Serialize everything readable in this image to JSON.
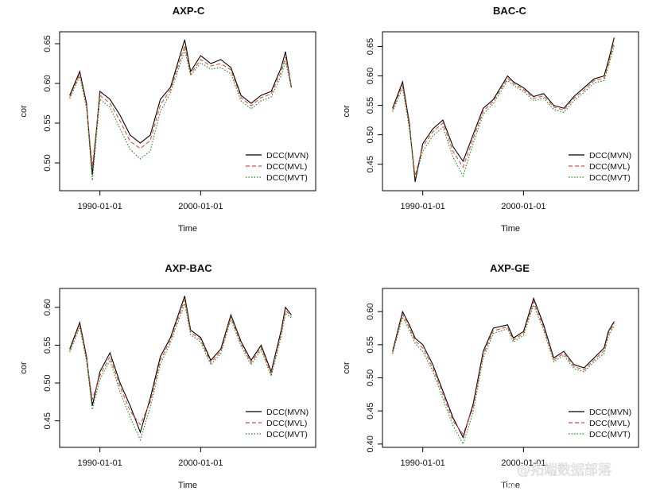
{
  "chart_data": [
    {
      "type": "line",
      "title": "AXP-C",
      "xlabel": "Time",
      "ylabel": "cor",
      "x_range": [
        "1986-01-01",
        "2011-06-01"
      ],
      "ylim": [
        0.465,
        0.665
      ],
      "x_ticks": [
        "1990-01-01",
        "2000-01-01"
      ],
      "y_ticks": [
        0.5,
        0.55,
        0.6,
        0.65
      ],
      "legend_position": "bottom-right",
      "x": [
        "1987-01-01",
        "1988-01-01",
        "1988-09-01",
        "1989-04-01",
        "1990-01-01",
        "1991-01-01",
        "1992-01-01",
        "1993-01-01",
        "1994-01-01",
        "1995-01-01",
        "1996-01-01",
        "1997-01-01",
        "1998-06-01",
        "1999-01-01",
        "2000-01-01",
        "2001-01-01",
        "2002-01-01",
        "2003-01-01",
        "2004-01-01",
        "2005-01-01",
        "2006-01-01",
        "2007-01-01",
        "2008-01-01",
        "2008-06-01",
        "2009-01-01"
      ],
      "series": [
        {
          "name": "DCC(MVN)",
          "color": "#000000",
          "dash": "solid",
          "values": [
            0.585,
            0.615,
            0.575,
            0.485,
            0.59,
            0.58,
            0.56,
            0.535,
            0.525,
            0.535,
            0.58,
            0.595,
            0.655,
            0.615,
            0.635,
            0.625,
            0.63,
            0.62,
            0.585,
            0.575,
            0.585,
            0.59,
            0.62,
            0.64,
            0.595
          ]
        },
        {
          "name": "DCC(MVL)",
          "color": "#e8483c",
          "dash": "dashed",
          "values": [
            0.583,
            0.612,
            0.572,
            0.495,
            0.585,
            0.575,
            0.553,
            0.527,
            0.518,
            0.528,
            0.573,
            0.592,
            0.648,
            0.612,
            0.63,
            0.622,
            0.625,
            0.617,
            0.582,
            0.572,
            0.582,
            0.587,
            0.615,
            0.633,
            0.597
          ]
        },
        {
          "name": "DCC(MVT)",
          "color": "#1a8a1a",
          "dash": "dotted",
          "values": [
            0.581,
            0.609,
            0.569,
            0.478,
            0.58,
            0.57,
            0.543,
            0.517,
            0.505,
            0.515,
            0.565,
            0.588,
            0.642,
            0.61,
            0.626,
            0.618,
            0.62,
            0.612,
            0.578,
            0.568,
            0.578,
            0.583,
            0.61,
            0.628,
            0.594
          ]
        }
      ]
    },
    {
      "type": "line",
      "title": "BAC-C",
      "xlabel": "Time",
      "ylabel": "cor",
      "x_range": [
        "1986-01-01",
        "2011-06-01"
      ],
      "ylim": [
        0.405,
        0.675
      ],
      "x_ticks": [
        "1990-01-01",
        "2000-01-01"
      ],
      "y_ticks": [
        0.45,
        0.5,
        0.55,
        0.6,
        0.65
      ],
      "legend_position": "bottom-right",
      "x": [
        "1987-01-01",
        "1988-01-01",
        "1988-09-01",
        "1989-04-01",
        "1990-01-01",
        "1991-01-01",
        "1992-01-01",
        "1993-01-01",
        "1994-01-01",
        "1995-01-01",
        "1996-01-01",
        "1997-01-01",
        "1998-06-01",
        "1999-01-01",
        "2000-01-01",
        "2001-01-01",
        "2002-01-01",
        "2003-01-01",
        "2004-01-01",
        "2005-01-01",
        "2006-01-01",
        "2007-01-01",
        "2008-01-01",
        "2008-06-01",
        "2009-01-01"
      ],
      "series": [
        {
          "name": "DCC(MVN)",
          "color": "#000000",
          "dash": "solid",
          "values": [
            0.545,
            0.59,
            0.52,
            0.42,
            0.485,
            0.51,
            0.525,
            0.48,
            0.455,
            0.5,
            0.545,
            0.56,
            0.6,
            0.59,
            0.58,
            0.565,
            0.57,
            0.55,
            0.545,
            0.565,
            0.58,
            0.595,
            0.6,
            0.625,
            0.665
          ]
        },
        {
          "name": "DCC(MVL)",
          "color": "#e8483c",
          "dash": "dashed",
          "values": [
            0.542,
            0.585,
            0.515,
            0.43,
            0.48,
            0.505,
            0.52,
            0.472,
            0.445,
            0.493,
            0.54,
            0.557,
            0.596,
            0.587,
            0.577,
            0.562,
            0.566,
            0.547,
            0.542,
            0.562,
            0.576,
            0.592,
            0.596,
            0.62,
            0.658
          ]
        },
        {
          "name": "DCC(MVT)",
          "color": "#1a8a1a",
          "dash": "dotted",
          "values": [
            0.539,
            0.58,
            0.51,
            0.425,
            0.472,
            0.498,
            0.513,
            0.462,
            0.43,
            0.485,
            0.535,
            0.553,
            0.592,
            0.584,
            0.574,
            0.558,
            0.562,
            0.543,
            0.538,
            0.558,
            0.572,
            0.588,
            0.592,
            0.615,
            0.652
          ]
        }
      ]
    },
    {
      "type": "line",
      "title": "AXP-BAC",
      "xlabel": "Time",
      "ylabel": "cor",
      "x_range": [
        "1986-01-01",
        "2011-06-01"
      ],
      "ylim": [
        0.415,
        0.625
      ],
      "x_ticks": [
        "1990-01-01",
        "2000-01-01"
      ],
      "y_ticks": [
        0.45,
        0.5,
        0.55,
        0.6
      ],
      "legend_position": "bottom-right",
      "x": [
        "1987-01-01",
        "1988-01-01",
        "1988-09-01",
        "1989-04-01",
        "1990-01-01",
        "1991-01-01",
        "1992-01-01",
        "1993-01-01",
        "1994-01-01",
        "1995-01-01",
        "1996-01-01",
        "1997-01-01",
        "1998-06-01",
        "1999-01-01",
        "2000-01-01",
        "2001-01-01",
        "2002-01-01",
        "2003-01-01",
        "2004-01-01",
        "2005-01-01",
        "2006-01-01",
        "2007-01-01",
        "2008-01-01",
        "2008-06-01",
        "2009-01-01"
      ],
      "series": [
        {
          "name": "DCC(MVN)",
          "color": "#000000",
          "dash": "solid",
          "values": [
            0.545,
            0.58,
            0.535,
            0.47,
            0.515,
            0.54,
            0.5,
            0.47,
            0.435,
            0.48,
            0.535,
            0.56,
            0.615,
            0.57,
            0.56,
            0.53,
            0.545,
            0.59,
            0.555,
            0.53,
            0.55,
            0.515,
            0.57,
            0.6,
            0.59
          ]
        },
        {
          "name": "DCC(MVL)",
          "color": "#e8483c",
          "dash": "dashed",
          "values": [
            0.543,
            0.577,
            0.532,
            0.478,
            0.51,
            0.535,
            0.495,
            0.463,
            0.445,
            0.475,
            0.53,
            0.557,
            0.61,
            0.567,
            0.557,
            0.527,
            0.542,
            0.587,
            0.552,
            0.527,
            0.547,
            0.512,
            0.566,
            0.596,
            0.588
          ]
        },
        {
          "name": "DCC(MVT)",
          "color": "#1a8a1a",
          "dash": "dotted",
          "values": [
            0.541,
            0.574,
            0.529,
            0.465,
            0.505,
            0.53,
            0.488,
            0.455,
            0.425,
            0.468,
            0.525,
            0.553,
            0.605,
            0.564,
            0.554,
            0.524,
            0.539,
            0.584,
            0.549,
            0.524,
            0.544,
            0.509,
            0.562,
            0.592,
            0.586
          ]
        }
      ]
    },
    {
      "type": "line",
      "title": "AXP-GE",
      "xlabel": "Time",
      "ylabel": "cor",
      "x_range": [
        "1986-01-01",
        "2011-06-01"
      ],
      "ylim": [
        0.395,
        0.635
      ],
      "x_ticks": [
        "1990-01-01",
        "2000-01-01"
      ],
      "y_ticks": [
        0.4,
        0.45,
        0.5,
        0.55,
        0.6
      ],
      "legend_position": "bottom-right",
      "x": [
        "1987-01-01",
        "1988-01-01",
        "1988-09-01",
        "1989-04-01",
        "1990-01-01",
        "1991-01-01",
        "1992-01-01",
        "1993-01-01",
        "1994-01-01",
        "1995-01-01",
        "1996-01-01",
        "1997-01-01",
        "1998-06-01",
        "1999-01-01",
        "2000-01-01",
        "2001-01-01",
        "2002-01-01",
        "2003-01-01",
        "2004-01-01",
        "2005-01-01",
        "2006-01-01",
        "2007-01-01",
        "2008-01-01",
        "2008-06-01",
        "2009-01-01"
      ],
      "series": [
        {
          "name": "DCC(MVN)",
          "color": "#000000",
          "dash": "solid",
          "values": [
            0.54,
            0.6,
            0.58,
            0.56,
            0.55,
            0.52,
            0.48,
            0.44,
            0.41,
            0.46,
            0.54,
            0.575,
            0.58,
            0.56,
            0.57,
            0.62,
            0.58,
            0.53,
            0.54,
            0.52,
            0.515,
            0.53,
            0.545,
            0.57,
            0.585
          ]
        },
        {
          "name": "DCC(MVL)",
          "color": "#e8483c",
          "dash": "dashed",
          "values": [
            0.538,
            0.596,
            0.576,
            0.556,
            0.545,
            0.515,
            0.475,
            0.435,
            0.415,
            0.455,
            0.535,
            0.571,
            0.577,
            0.557,
            0.567,
            0.615,
            0.576,
            0.527,
            0.537,
            0.517,
            0.512,
            0.527,
            0.541,
            0.566,
            0.582
          ]
        },
        {
          "name": "DCC(MVT)",
          "color": "#1a8a1a",
          "dash": "dotted",
          "values": [
            0.536,
            0.592,
            0.572,
            0.552,
            0.54,
            0.51,
            0.468,
            0.428,
            0.4,
            0.448,
            0.53,
            0.567,
            0.574,
            0.554,
            0.564,
            0.61,
            0.572,
            0.524,
            0.534,
            0.514,
            0.509,
            0.524,
            0.537,
            0.562,
            0.579
          ]
        }
      ]
    }
  ],
  "watermark": {
    "line1": "@拓端数据部落",
    "line2": "https://blog.csdn.net/qq_19600291"
  }
}
